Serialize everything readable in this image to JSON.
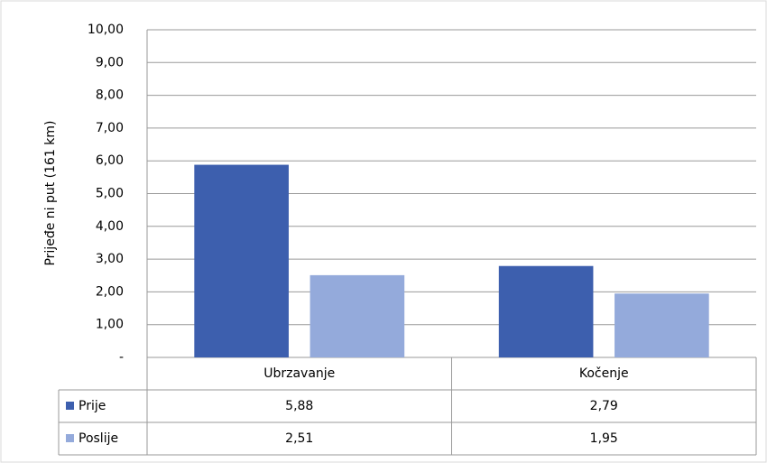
{
  "chart_data": {
    "type": "bar",
    "y_label": "Prijeđe ni put (161 km)",
    "categories": [
      "Ubrzavanje",
      "Kočenje"
    ],
    "series": [
      {
        "name": "Prije",
        "color": "#3d5fae",
        "values": [
          5.88,
          2.79
        ],
        "value_labels": [
          "5,88",
          "2,79"
        ]
      },
      {
        "name": "Poslije",
        "color": "#94aadb",
        "values": [
          2.51,
          1.95
        ],
        "value_labels": [
          "2,51",
          "1,95"
        ]
      }
    ],
    "ylim": [
      0,
      10
    ],
    "yticks": [
      {
        "value": 0,
        "label": "-"
      },
      {
        "value": 1,
        "label": "1,00"
      },
      {
        "value": 2,
        "label": "2,00"
      },
      {
        "value": 3,
        "label": "3,00"
      },
      {
        "value": 4,
        "label": "4,00"
      },
      {
        "value": 5,
        "label": "5,00"
      },
      {
        "value": 6,
        "label": "6,00"
      },
      {
        "value": 7,
        "label": "7,00"
      },
      {
        "value": 8,
        "label": "8,00"
      },
      {
        "value": 9,
        "label": "9,00"
      },
      {
        "value": 10,
        "label": "10,00"
      }
    ],
    "grid": true
  }
}
